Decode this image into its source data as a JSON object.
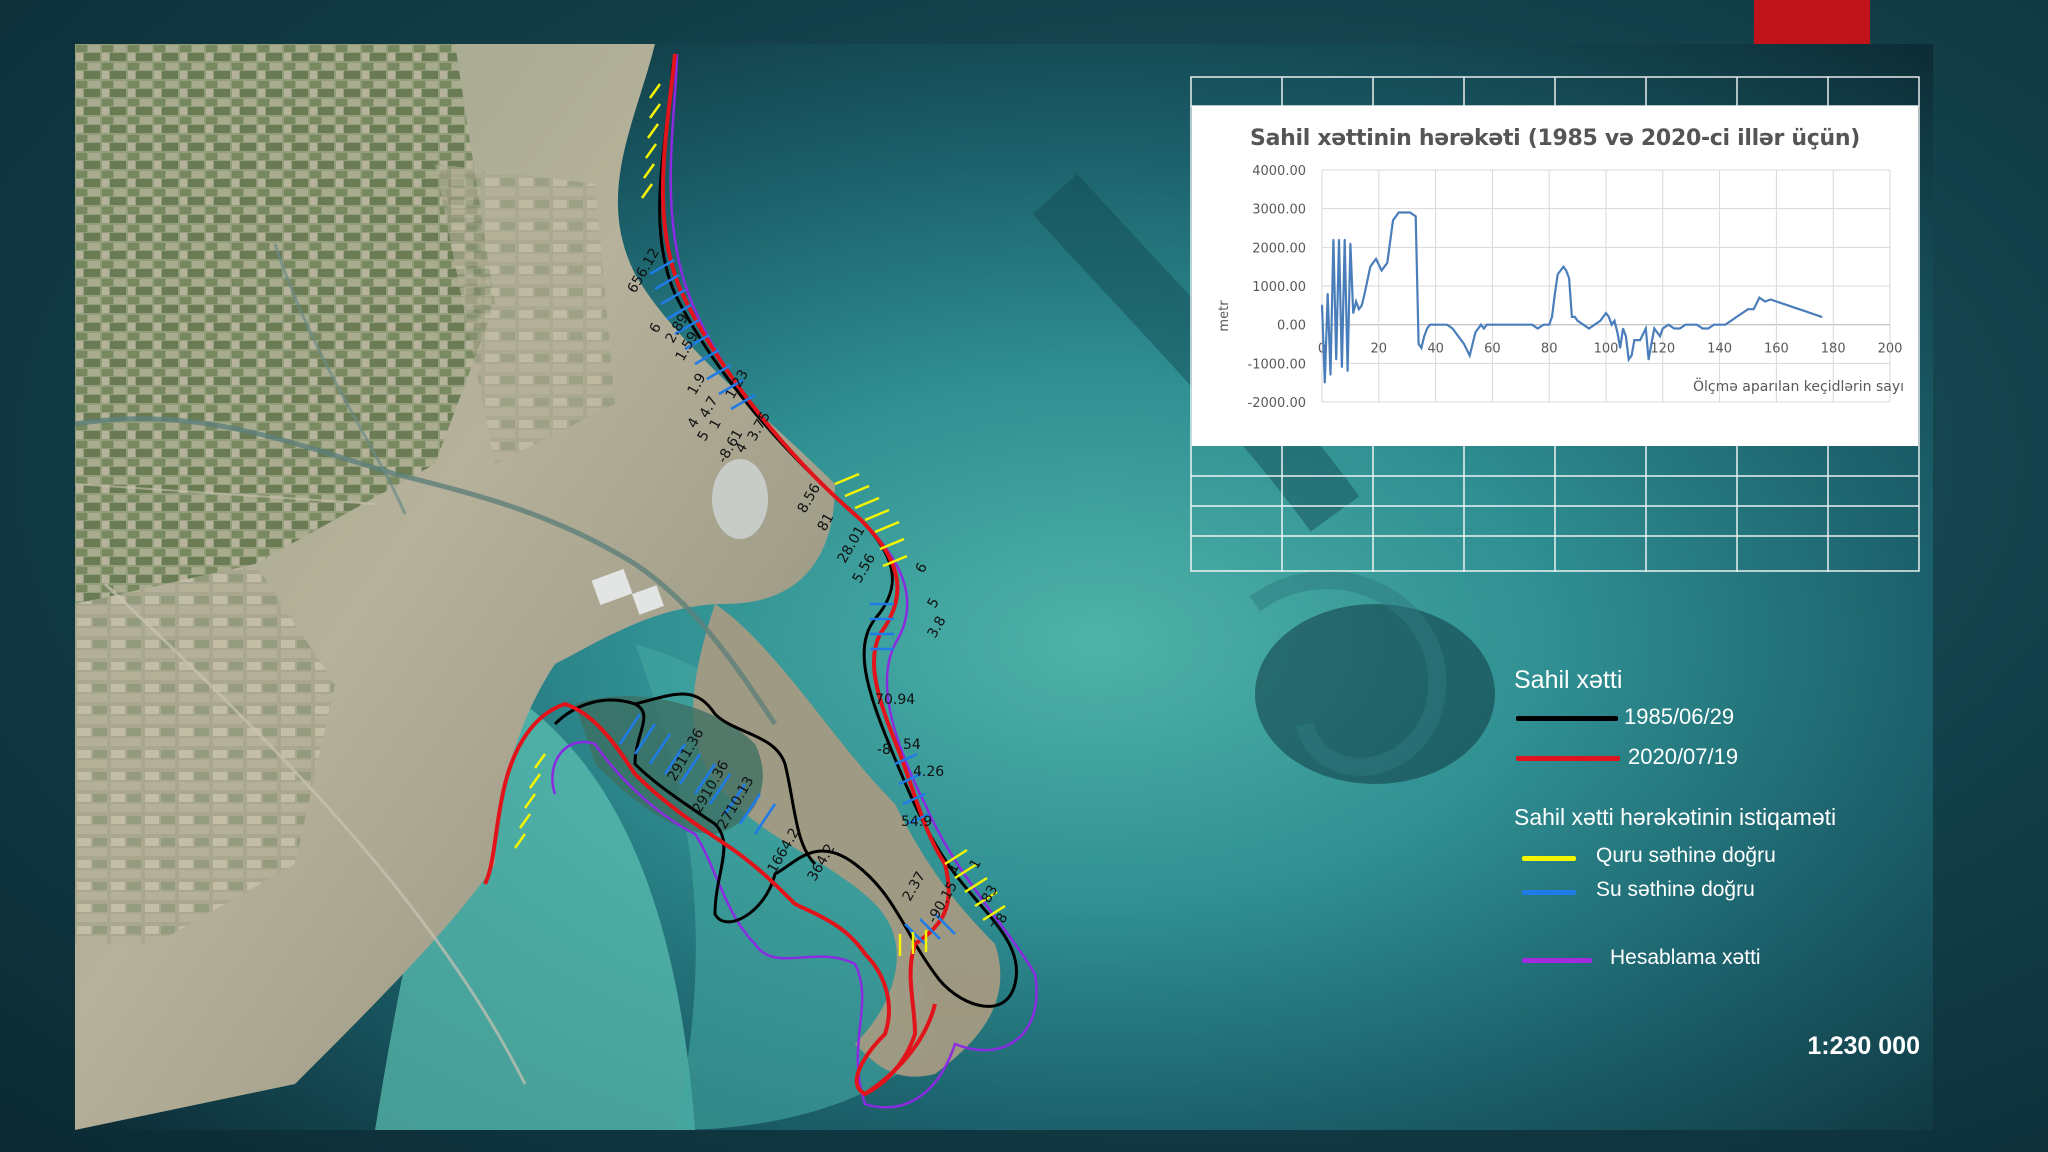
{
  "chart": {
    "title": "Sahil xəttinin hərəkəti (1985 və 2020-ci illər üçün)",
    "ylabel": "metr",
    "xlabel": "Ölçmə aparılan keçidlərin sayı",
    "yticks": [
      "4000.00",
      "3000.00",
      "2000.00",
      "1000.00",
      "0.00",
      "-1000.00",
      "-2000.00"
    ],
    "xticks": [
      "0",
      "20",
      "40",
      "60",
      "80",
      "100",
      "120",
      "140",
      "160",
      "180",
      "200"
    ]
  },
  "chart_data": {
    "type": "line",
    "title": "Sahil xəttinin hərəkəti (1985 və 2020-ci illər üçün)",
    "xlabel": "Ölçmə aparılan keçidlərin sayı",
    "ylabel": "metr",
    "xlim": [
      0,
      200
    ],
    "ylim": [
      -2000,
      4000
    ],
    "grid": true,
    "color": "#4a7ebb",
    "x": [
      0,
      1,
      2,
      3,
      4,
      5,
      6,
      7,
      8,
      9,
      10,
      11,
      12,
      13,
      14,
      15,
      17,
      19,
      21,
      23,
      25,
      27,
      29,
      31,
      33,
      34,
      35,
      36,
      37,
      38,
      40,
      42,
      44,
      46,
      48,
      50,
      52,
      54,
      56,
      57,
      58,
      60,
      62,
      64,
      66,
      68,
      70,
      72,
      74,
      76,
      78,
      80,
      81,
      82,
      83,
      84,
      85,
      86,
      87,
      88,
      89,
      90,
      92,
      94,
      96,
      98,
      100,
      101,
      102,
      103,
      104,
      105,
      106,
      107,
      108,
      109,
      110,
      112,
      114,
      115,
      116,
      117,
      118,
      119,
      120,
      122,
      124,
      126,
      128,
      130,
      132,
      134,
      136,
      138,
      140,
      142,
      144,
      146,
      148,
      150,
      152,
      154,
      156,
      158,
      160,
      162,
      164,
      166,
      168,
      170,
      172,
      174,
      176
    ],
    "values": [
      500,
      -1500,
      800,
      -1300,
      2200,
      -900,
      2200,
      -1100,
      2200,
      -1200,
      2100,
      300,
      600,
      400,
      500,
      800,
      1500,
      1700,
      1400,
      1600,
      2700,
      2900,
      2900,
      2900,
      2800,
      -500,
      -600,
      -300,
      -100,
      0,
      0,
      0,
      0,
      -100,
      -300,
      -500,
      -800,
      -200,
      0,
      -100,
      0,
      0,
      0,
      0,
      0,
      0,
      0,
      0,
      0,
      -100,
      0,
      0,
      200,
      800,
      1300,
      1400,
      1500,
      1400,
      1200,
      200,
      200,
      100,
      0,
      -100,
      0,
      100,
      300,
      200,
      0,
      100,
      -200,
      -600,
      -100,
      -300,
      -900,
      -800,
      -400,
      -400,
      -100,
      -900,
      -500,
      -100,
      -200,
      -300,
      -100,
      0,
      -100,
      -100,
      0,
      0,
      0,
      -100,
      -100,
      0,
      0,
      0,
      100,
      200,
      300,
      400,
      400,
      700,
      600,
      650,
      600,
      550,
      500,
      450,
      400,
      350,
      300,
      250,
      200
    ]
  },
  "legend": {
    "title1": "Sahil xətti",
    "items1": [
      {
        "label": "1985/06/29",
        "color": "#000000"
      },
      {
        "label": "2020/07/19",
        "color": "#e0141a"
      }
    ],
    "title2": "Sahil xətti hərəkətinin istiqaməti",
    "items2": [
      {
        "label": "Quru səthinə doğru",
        "color": "#f5f500"
      },
      {
        "label": "Su səthinə doğru",
        "color": "#1f7be8"
      }
    ],
    "items3": [
      {
        "label": "Hesablama xətti",
        "color": "#a22be0"
      }
    ]
  },
  "scale": "1:230 000",
  "map_labels": [
    "656.12",
    "6",
    "2.89",
    "1.59",
    "1.9",
    "4",
    "4.7",
    "1.23",
    "5",
    "1",
    "-8.61",
    "4",
    "3.75",
    "8.56",
    "81",
    "28.01",
    "5.56",
    "6",
    "5",
    "3.8",
    "-70.94",
    "-8",
    "54",
    "4.26",
    "2911.36",
    "2910.36",
    "2710.13",
    "1664.2",
    "364.2",
    "54.9",
    "2.37",
    "-90.15",
    "1",
    "1",
    "83",
    "78"
  ],
  "colors": {
    "background": "#123e48",
    "accent": "#c0141a",
    "line_1985": "#000000",
    "line_2020": "#e0141a",
    "landward": "#f5f500",
    "seaward": "#1f7be8",
    "calc_line": "#a22be0"
  }
}
